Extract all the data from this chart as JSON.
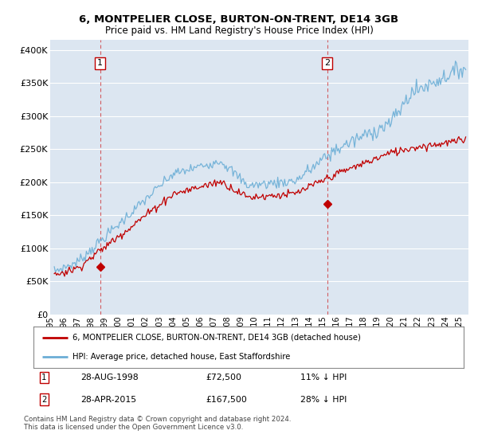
{
  "title1": "6, MONTPELIER CLOSE, BURTON-ON-TRENT, DE14 3GB",
  "title2": "Price paid vs. HM Land Registry's House Price Index (HPI)",
  "ylabel_ticks": [
    "£0",
    "£50K",
    "£100K",
    "£150K",
    "£200K",
    "£250K",
    "£300K",
    "£350K",
    "£400K"
  ],
  "ytick_values": [
    0,
    50000,
    100000,
    150000,
    200000,
    250000,
    300000,
    350000,
    400000
  ],
  "ylim": [
    0,
    415000
  ],
  "xlim_start": 1995.3,
  "xlim_end": 2025.7,
  "plot_bg_color": "#dce6f1",
  "grid_color": "#ffffff",
  "hpi_color": "#6baed6",
  "price_color": "#c00000",
  "sale1_price": 72500,
  "sale1_x": 1998.66,
  "sale2_price": 167500,
  "sale2_x": 2015.33,
  "sale1_date": "28-AUG-1998",
  "sale1_pricefmt": "£72,500",
  "sale1_label": "11% ↓ HPI",
  "sale2_date": "28-APR-2015",
  "sale2_pricefmt": "£167,500",
  "sale2_label": "28% ↓ HPI",
  "legend_label1": "6, MONTPELIER CLOSE, BURTON-ON-TRENT, DE14 3GB (detached house)",
  "legend_label2": "HPI: Average price, detached house, East Staffordshire",
  "footer1": "Contains HM Land Registry data © Crown copyright and database right 2024.",
  "footer2": "This data is licensed under the Open Government Licence v3.0.",
  "xtick_years": [
    1995,
    1996,
    1997,
    1998,
    1999,
    2000,
    2001,
    2002,
    2003,
    2004,
    2005,
    2006,
    2007,
    2008,
    2009,
    2010,
    2011,
    2012,
    2013,
    2014,
    2015,
    2016,
    2017,
    2018,
    2019,
    2020,
    2021,
    2022,
    2023,
    2024,
    2025
  ]
}
